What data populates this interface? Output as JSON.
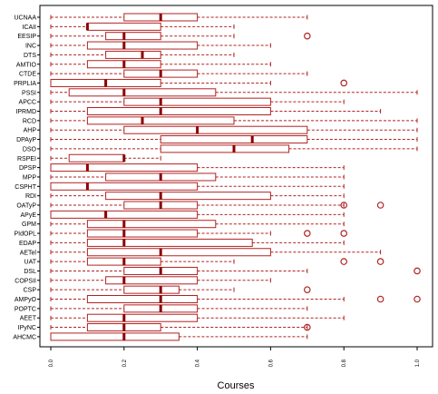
{
  "chart_data": {
    "type": "boxplot",
    "orientation": "horizontal",
    "title": "",
    "xlabel": "Courses",
    "ylabel": "",
    "xlim": [
      0.0,
      1.0
    ],
    "xticks": [
      0.0,
      0.2,
      0.4,
      0.6,
      0.8,
      1.0
    ],
    "xtick_labels": [
      "0.0",
      "0.2",
      "0.4",
      "0.6",
      "0.8",
      "1.0"
    ],
    "grid": false,
    "color": "#b22222",
    "median_color": "#8b0000",
    "categories": [
      "UCNAA",
      "ICAII",
      "EESIP",
      "INC",
      "DTS",
      "AMTIO",
      "CTDE",
      "PRPLIA",
      "PSSI",
      "APCC",
      "IPRMD",
      "RCD",
      "AHP",
      "DPAyP",
      "DSO",
      "RSPEI",
      "DPSP",
      "MPP",
      "CSPHT",
      "RDI",
      "OATyP",
      "APyE",
      "GPM",
      "PIdOPL",
      "EDAP",
      "AETel",
      "UAT",
      "DSL",
      "COPSII",
      "CSP",
      "AMPyO",
      "POPTC",
      "AEET",
      "IPyNC",
      "AHCMC"
    ],
    "boxes": [
      {
        "name": "UCNAA",
        "whislo": 0.0,
        "q1": 0.2,
        "med": 0.3,
        "q3": 0.4,
        "whishi": 0.7,
        "fliers": []
      },
      {
        "name": "ICAII",
        "whislo": 0.0,
        "q1": 0.1,
        "med": 0.1,
        "q3": 0.3,
        "whishi": 0.5,
        "fliers": []
      },
      {
        "name": "EESIP",
        "whislo": 0.0,
        "q1": 0.15,
        "med": 0.2,
        "q3": 0.3,
        "whishi": 0.5,
        "fliers": [
          0.7
        ]
      },
      {
        "name": "INC",
        "whislo": 0.0,
        "q1": 0.1,
        "med": 0.2,
        "q3": 0.4,
        "whishi": 0.6,
        "fliers": []
      },
      {
        "name": "DTS",
        "whislo": 0.0,
        "q1": 0.15,
        "med": 0.25,
        "q3": 0.3,
        "whishi": 0.5,
        "fliers": []
      },
      {
        "name": "AMTIO",
        "whislo": 0.0,
        "q1": 0.1,
        "med": 0.2,
        "q3": 0.3,
        "whishi": 0.6,
        "fliers": []
      },
      {
        "name": "CTDE",
        "whislo": 0.0,
        "q1": 0.2,
        "med": 0.3,
        "q3": 0.4,
        "whishi": 0.7,
        "fliers": []
      },
      {
        "name": "PRPLIA",
        "whislo": 0.0,
        "q1": 0.0,
        "med": 0.15,
        "q3": 0.3,
        "whishi": 0.6,
        "fliers": [
          0.8
        ]
      },
      {
        "name": "PSSI",
        "whislo": 0.0,
        "q1": 0.05,
        "med": 0.2,
        "q3": 0.45,
        "whishi": 1.0,
        "fliers": []
      },
      {
        "name": "APCC",
        "whislo": 0.0,
        "q1": 0.2,
        "med": 0.3,
        "q3": 0.6,
        "whishi": 0.8,
        "fliers": []
      },
      {
        "name": "IPRMD",
        "whislo": 0.0,
        "q1": 0.1,
        "med": 0.3,
        "q3": 0.6,
        "whishi": 0.9,
        "fliers": []
      },
      {
        "name": "RCD",
        "whislo": 0.0,
        "q1": 0.1,
        "med": 0.25,
        "q3": 0.5,
        "whishi": 1.0,
        "fliers": []
      },
      {
        "name": "AHP",
        "whislo": 0.0,
        "q1": 0.2,
        "med": 0.4,
        "q3": 0.7,
        "whishi": 1.0,
        "fliers": []
      },
      {
        "name": "DPAyP",
        "whislo": 0.0,
        "q1": 0.3,
        "med": 0.55,
        "q3": 0.7,
        "whishi": 1.0,
        "fliers": []
      },
      {
        "name": "DSO",
        "whislo": 0.0,
        "q1": 0.3,
        "med": 0.5,
        "q3": 0.65,
        "whishi": 1.0,
        "fliers": []
      },
      {
        "name": "RSPEI",
        "whislo": 0.0,
        "q1": 0.05,
        "med": 0.2,
        "q3": 0.2,
        "whishi": 0.3,
        "fliers": []
      },
      {
        "name": "DPSP",
        "whislo": 0.0,
        "q1": 0.0,
        "med": 0.1,
        "q3": 0.4,
        "whishi": 0.8,
        "fliers": []
      },
      {
        "name": "MPP",
        "whislo": 0.0,
        "q1": 0.15,
        "med": 0.3,
        "q3": 0.45,
        "whishi": 0.8,
        "fliers": []
      },
      {
        "name": "CSPHT",
        "whislo": 0.0,
        "q1": 0.0,
        "med": 0.1,
        "q3": 0.4,
        "whishi": 0.8,
        "fliers": []
      },
      {
        "name": "RDI",
        "whislo": 0.0,
        "q1": 0.15,
        "med": 0.3,
        "q3": 0.6,
        "whishi": 0.8,
        "fliers": []
      },
      {
        "name": "OATyP",
        "whislo": 0.0,
        "q1": 0.2,
        "med": 0.3,
        "q3": 0.4,
        "whishi": 0.8,
        "fliers": [
          0.8,
          0.9
        ]
      },
      {
        "name": "APyE",
        "whislo": 0.0,
        "q1": 0.0,
        "med": 0.15,
        "q3": 0.4,
        "whishi": 0.8,
        "fliers": []
      },
      {
        "name": "GPM",
        "whislo": 0.0,
        "q1": 0.1,
        "med": 0.2,
        "q3": 0.45,
        "whishi": 0.8,
        "fliers": []
      },
      {
        "name": "PIdOPL",
        "whislo": 0.0,
        "q1": 0.1,
        "med": 0.2,
        "q3": 0.4,
        "whishi": 0.6,
        "fliers": [
          0.7,
          0.8
        ]
      },
      {
        "name": "EDAP",
        "whislo": 0.0,
        "q1": 0.1,
        "med": 0.2,
        "q3": 0.55,
        "whishi": 0.8,
        "fliers": []
      },
      {
        "name": "AETel",
        "whislo": 0.0,
        "q1": 0.1,
        "med": 0.3,
        "q3": 0.6,
        "whishi": 0.9,
        "fliers": []
      },
      {
        "name": "UAT",
        "whislo": 0.0,
        "q1": 0.1,
        "med": 0.2,
        "q3": 0.3,
        "whishi": 0.5,
        "fliers": [
          0.8,
          0.9
        ]
      },
      {
        "name": "DSL",
        "whislo": 0.0,
        "q1": 0.2,
        "med": 0.3,
        "q3": 0.4,
        "whishi": 0.7,
        "fliers": [
          1.0
        ]
      },
      {
        "name": "COPSII",
        "whislo": 0.0,
        "q1": 0.15,
        "med": 0.2,
        "q3": 0.4,
        "whishi": 0.6,
        "fliers": []
      },
      {
        "name": "CSP",
        "whislo": 0.0,
        "q1": 0.2,
        "med": 0.3,
        "q3": 0.35,
        "whishi": 0.5,
        "fliers": [
          0.7
        ]
      },
      {
        "name": "AMPyO",
        "whislo": 0.0,
        "q1": 0.1,
        "med": 0.3,
        "q3": 0.4,
        "whishi": 0.8,
        "fliers": [
          0.9,
          1.0
        ]
      },
      {
        "name": "POPTC",
        "whislo": 0.0,
        "q1": 0.2,
        "med": 0.3,
        "q3": 0.4,
        "whishi": 0.7,
        "fliers": []
      },
      {
        "name": "AEET",
        "whislo": 0.0,
        "q1": 0.1,
        "med": 0.2,
        "q3": 0.4,
        "whishi": 0.8,
        "fliers": []
      },
      {
        "name": "IPyNC",
        "whislo": 0.0,
        "q1": 0.1,
        "med": 0.2,
        "q3": 0.3,
        "whishi": 0.7,
        "fliers": [
          0.7
        ]
      },
      {
        "name": "AHCMC",
        "whislo": 0.0,
        "q1": 0.0,
        "med": 0.2,
        "q3": 0.35,
        "whishi": 0.7,
        "fliers": []
      }
    ]
  }
}
